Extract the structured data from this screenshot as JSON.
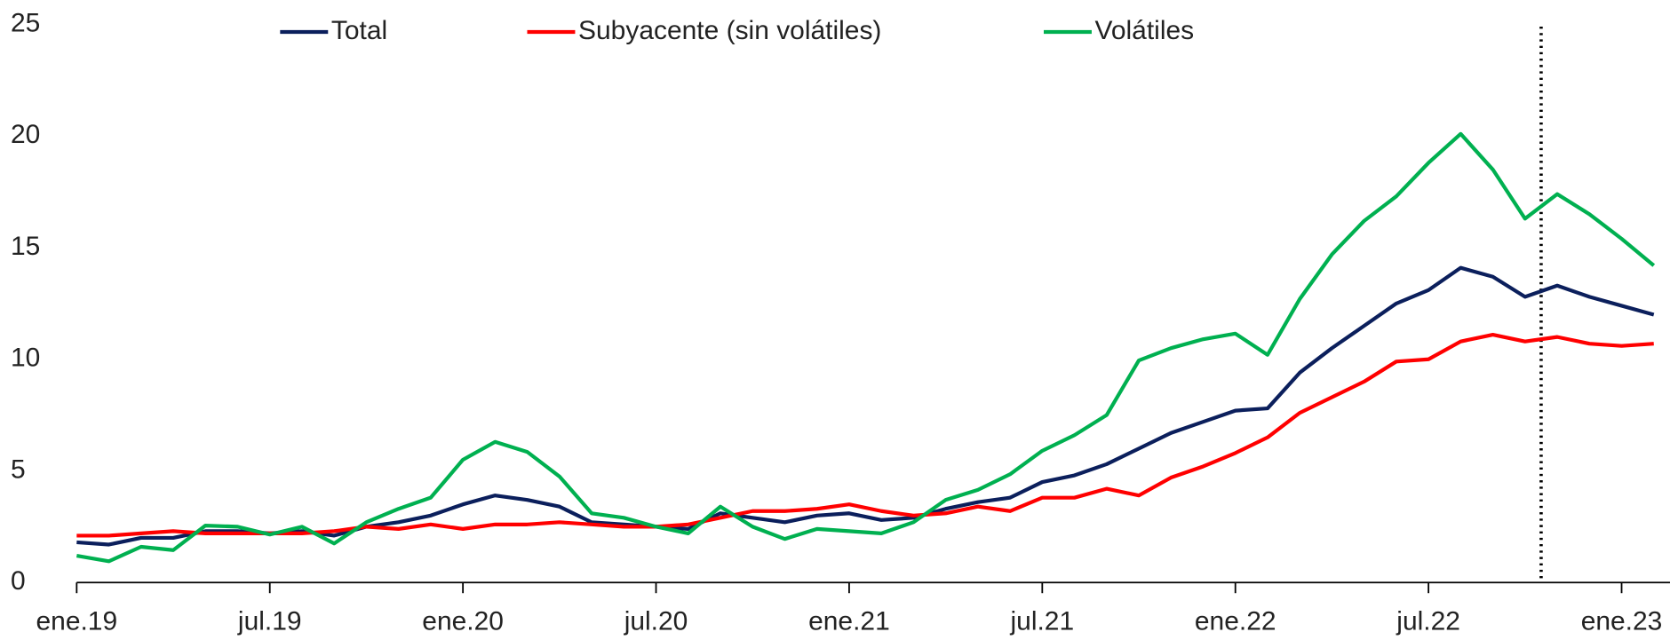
{
  "chart_data": {
    "type": "line",
    "categories": [
      "ene.19",
      null,
      null,
      null,
      null,
      null,
      "jul.19",
      null,
      null,
      null,
      null,
      null,
      "ene.20",
      null,
      null,
      null,
      null,
      null,
      "jul.20",
      null,
      null,
      null,
      null,
      null,
      "ene.21",
      null,
      null,
      null,
      null,
      null,
      "jul.21",
      null,
      null,
      null,
      null,
      null,
      "ene.22",
      null,
      null,
      null,
      null,
      null,
      "jul.22",
      null,
      null,
      null,
      null,
      null,
      "ene.23",
      null
    ],
    "series": [
      {
        "name": "Total",
        "color": "#0b1f5c",
        "values": [
          1.8,
          1.7,
          2.0,
          2.0,
          2.3,
          2.3,
          2.2,
          2.3,
          2.1,
          2.5,
          2.7,
          3.0,
          3.5,
          3.9,
          3.7,
          3.4,
          2.7,
          2.6,
          2.5,
          2.4,
          3.1,
          2.9,
          2.7,
          3.0,
          3.1,
          2.8,
          2.9,
          3.3,
          3.6,
          3.8,
          4.5,
          4.8,
          5.3,
          6.0,
          6.7,
          7.2,
          7.7,
          7.8,
          9.4,
          10.5,
          11.5,
          12.5,
          13.1,
          14.1,
          13.7,
          12.8,
          13.3,
          12.8,
          12.4,
          12.0
        ]
      },
      {
        "name": "Subyacente (sin volátiles)",
        "color": "#ff0000",
        "values": [
          2.1,
          2.1,
          2.2,
          2.3,
          2.2,
          2.2,
          2.2,
          2.2,
          2.3,
          2.5,
          2.4,
          2.6,
          2.4,
          2.6,
          2.6,
          2.7,
          2.6,
          2.5,
          2.5,
          2.6,
          2.9,
          3.2,
          3.2,
          3.3,
          3.5,
          3.2,
          3.0,
          3.1,
          3.4,
          3.2,
          3.8,
          3.8,
          4.2,
          3.9,
          4.7,
          5.2,
          5.8,
          6.5,
          7.6,
          8.3,
          9.0,
          9.9,
          10.0,
          10.8,
          11.1,
          10.8,
          11.0,
          10.7,
          10.6,
          10.7
        ]
      },
      {
        "name": "Volátiles",
        "color": "#00b050",
        "values": [
          1.2,
          0.95,
          1.6,
          1.45,
          2.55,
          2.5,
          2.15,
          2.5,
          1.75,
          2.7,
          3.3,
          3.8,
          5.5,
          6.3,
          5.85,
          4.75,
          3.1,
          2.9,
          2.5,
          2.2,
          3.4,
          2.5,
          1.95,
          2.4,
          2.3,
          2.2,
          2.7,
          3.7,
          4.15,
          4.85,
          5.9,
          6.6,
          7.5,
          9.95,
          10.5,
          10.9,
          11.15,
          10.2,
          12.7,
          14.7,
          16.2,
          17.3,
          18.8,
          20.1,
          18.5,
          16.3,
          17.4,
          16.5,
          15.4,
          14.2
        ]
      }
    ],
    "ylim": [
      0,
      25
    ],
    "yticks": [
      0,
      5,
      10,
      15,
      20,
      25
    ],
    "grid": false,
    "legend": "top",
    "reference_line_x": 45.5
  }
}
